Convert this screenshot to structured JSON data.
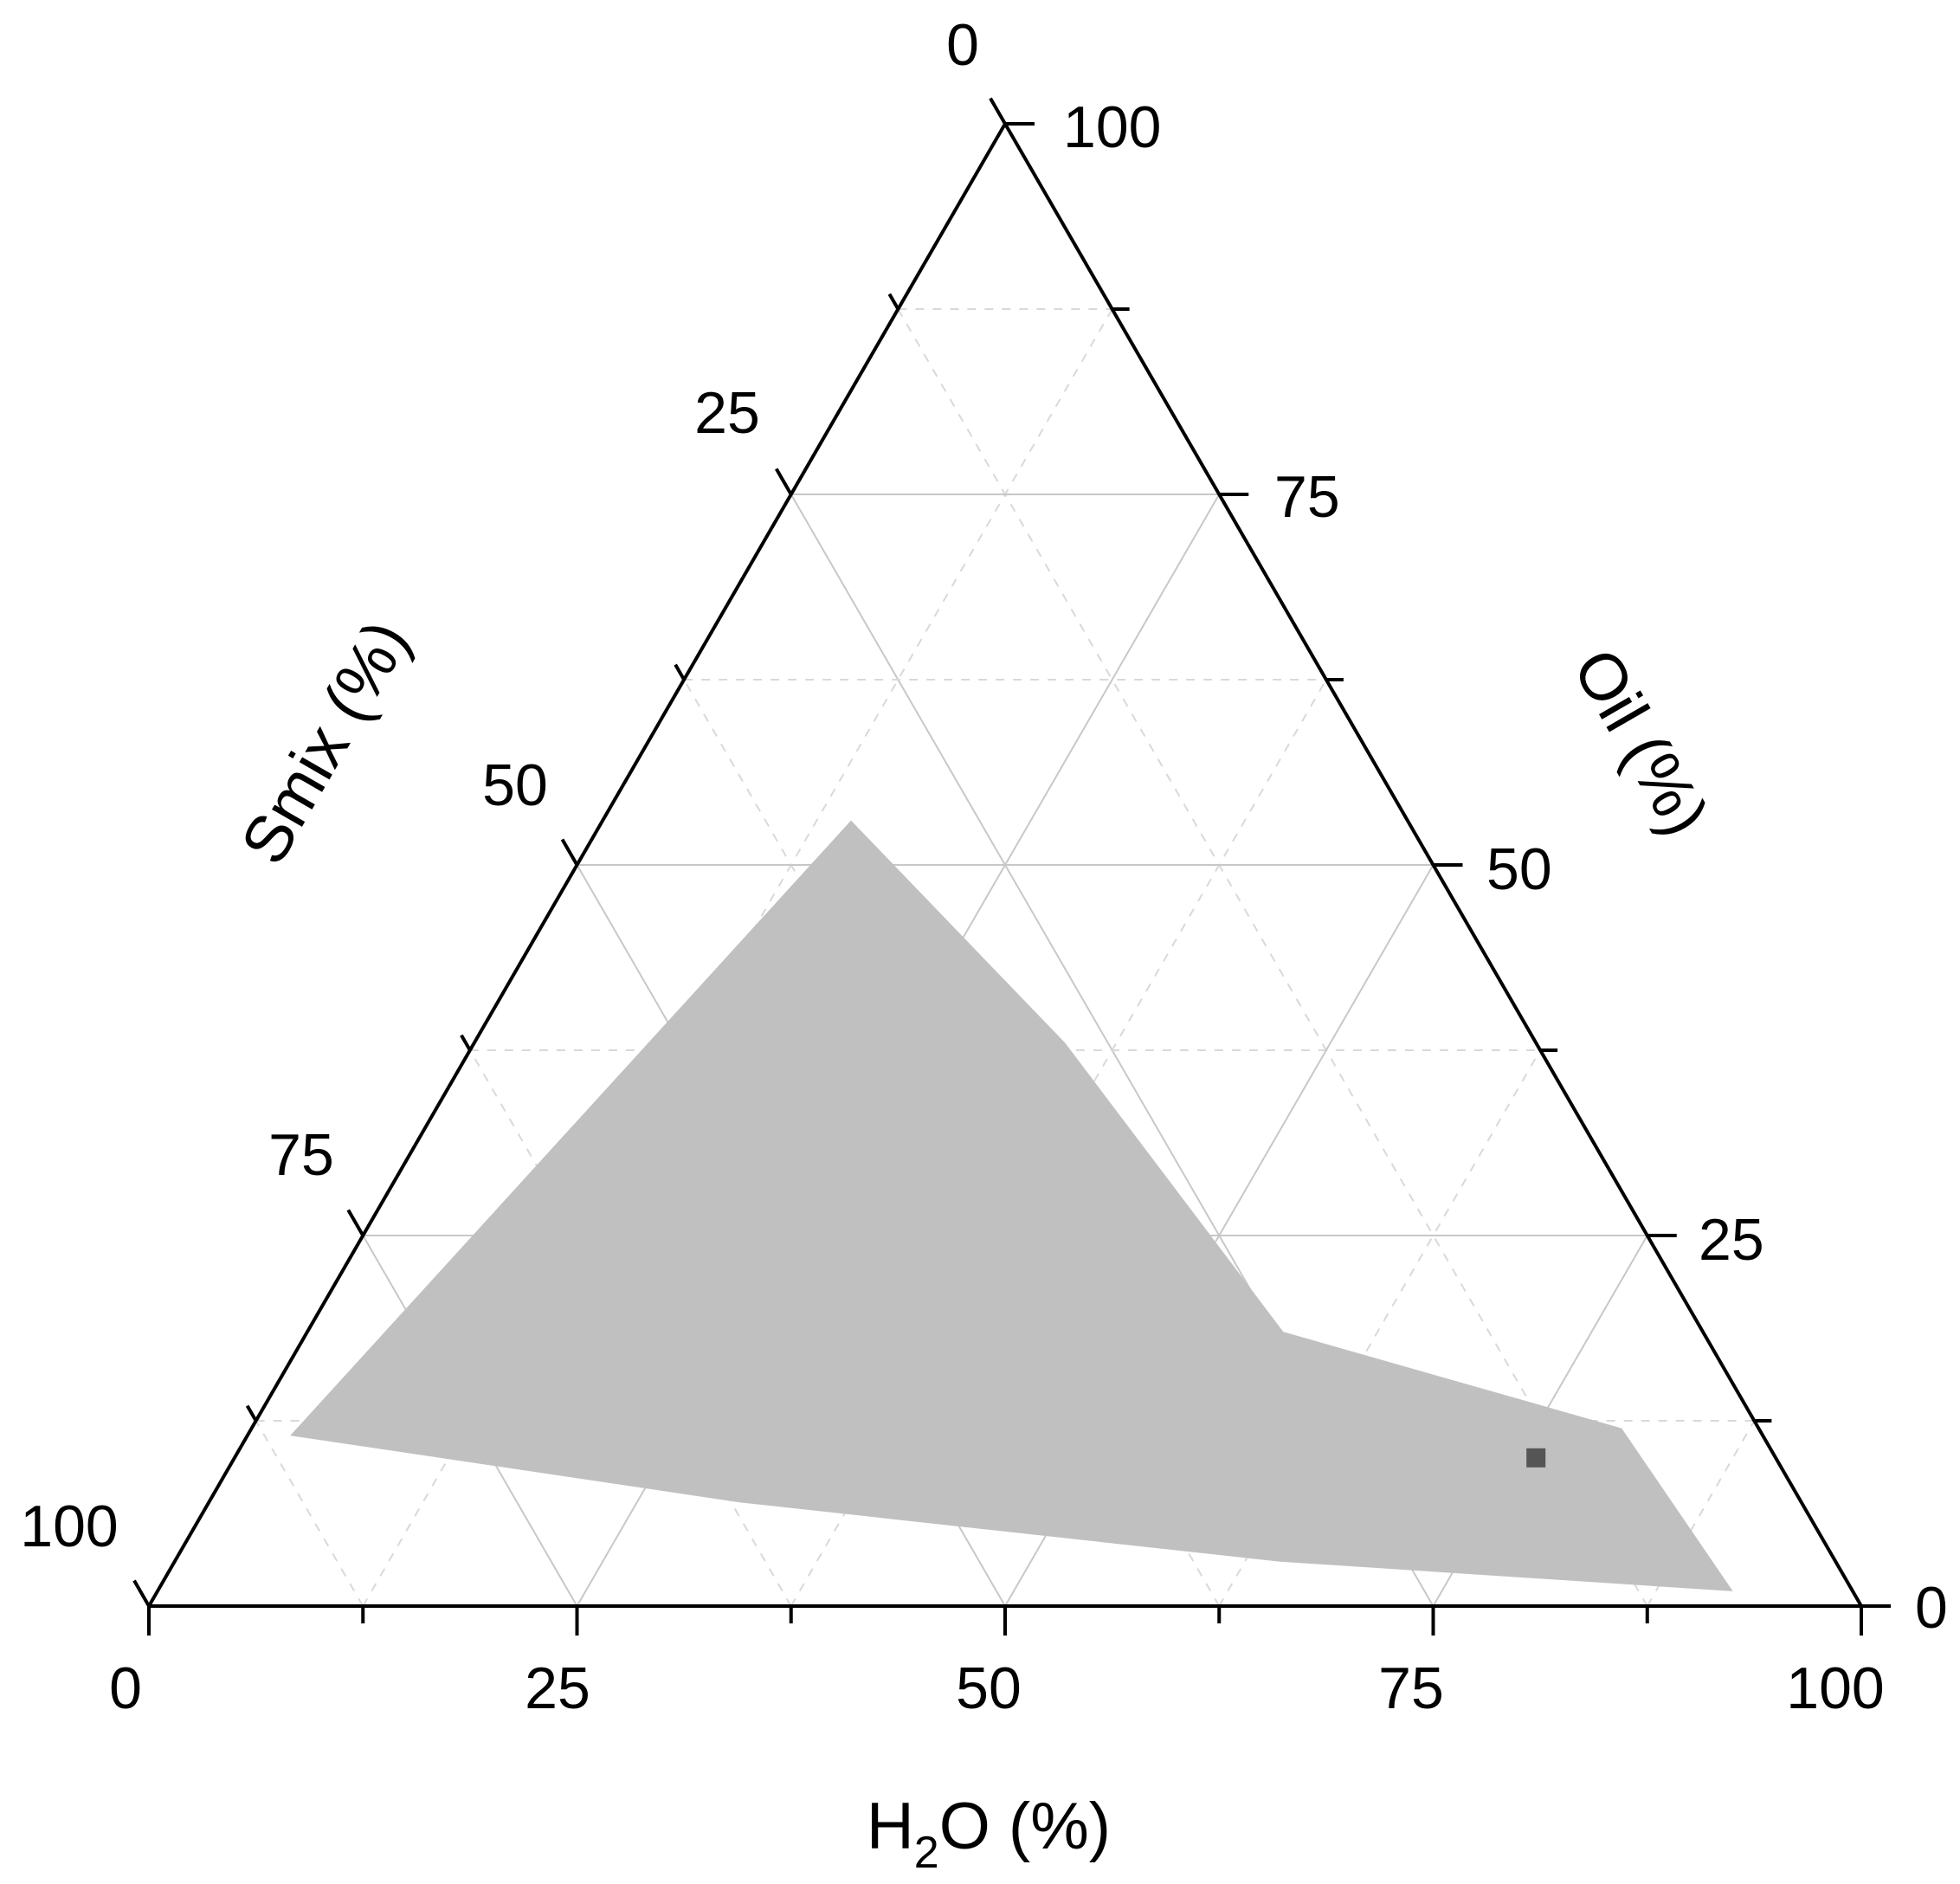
{
  "chart_data": {
    "type": "ternary",
    "title": "",
    "axes": {
      "bottom": {
        "label": "H",
        "label_sub": "2",
        "label_rest": "O (%)",
        "ticks": [
          "0",
          "25",
          "50",
          "75",
          "100"
        ]
      },
      "left": {
        "label": "Smix (%)",
        "ticks": [
          "0",
          "25",
          "50",
          "75",
          "100"
        ]
      },
      "right": {
        "label": "Oil (%)",
        "ticks": [
          "0",
          "25",
          "50",
          "75",
          "100"
        ]
      }
    },
    "grid": {
      "major_step": 25,
      "minor_step": 12.5,
      "major_color": "#c8c8c8",
      "minor_color": "#d9d9d9"
    },
    "region": {
      "fill": "#c0c0c0",
      "points": [
        {
          "h2o": 2.5,
          "oil": 11.5,
          "smix": 86.0
        },
        {
          "h2o": 14.5,
          "oil": 53.0,
          "smix": 32.5
        },
        {
          "h2o": 34.5,
          "oil": 38.0,
          "smix": 27.5
        },
        {
          "h2o": 57.0,
          "oil": 18.5,
          "smix": 24.5
        },
        {
          "h2o": 80.0,
          "oil": 12.0,
          "smix": 8.0
        },
        {
          "h2o": 92.0,
          "oil": 1.0,
          "smix": 7.0
        },
        {
          "h2o": 64.5,
          "oil": 3.0,
          "smix": 32.5
        },
        {
          "h2o": 31.0,
          "oil": 7.0,
          "smix": 62.0
        }
      ]
    },
    "points": [
      {
        "h2o": 76.0,
        "oil": 10.0,
        "smix": 14.0,
        "marker": "square",
        "color": "#555555"
      }
    ]
  }
}
